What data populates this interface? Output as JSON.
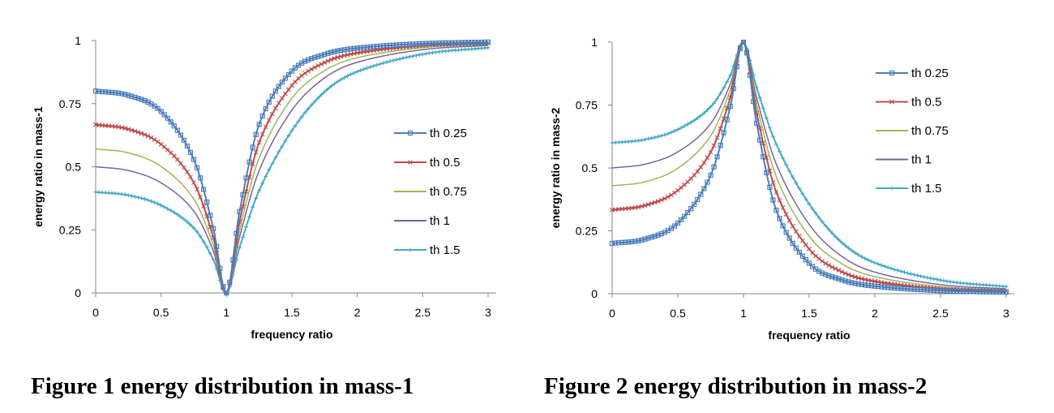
{
  "chart_data": [
    {
      "type": "line",
      "caption": "Figure 1 energy distribution in mass-1",
      "title": "",
      "xlabel": "frequency ratio",
      "ylabel": "energy ratio in mass-1",
      "xlim": [
        0,
        3
      ],
      "ylim": [
        0,
        1
      ],
      "xticks": [
        "0",
        "0.5",
        "1",
        "1.5",
        "2",
        "2.5",
        "3"
      ],
      "yticks": [
        "0",
        "0.25",
        "0.5",
        "0.75",
        "1"
      ],
      "grid": false,
      "legend_position": "right",
      "x": [
        0,
        0.25,
        0.5,
        0.75,
        0.9,
        1,
        1.1,
        1.25,
        1.5,
        1.75,
        2,
        2.5,
        3
      ],
      "series": [
        {
          "name": "th 0.25",
          "color": "#4a7ebb",
          "marker": "square",
          "values": [
            0.8,
            0.783,
            0.719,
            0.529,
            0.255,
            0,
            0.322,
            0.668,
            0.879,
            0.945,
            0.97,
            0.988,
            0.994
          ]
        },
        {
          "name": "th 0.5",
          "color": "#be4b48",
          "marker": "x",
          "values": [
            0.667,
            0.649,
            0.589,
            0.437,
            0.219,
            0,
            0.282,
            0.596,
            0.822,
            0.913,
            0.951,
            0.98,
            0.99
          ]
        },
        {
          "name": "th 0.75",
          "color": "#98b954",
          "marker": "none",
          "values": [
            0.571,
            0.555,
            0.501,
            0.372,
            0.189,
            0,
            0.248,
            0.535,
            0.771,
            0.881,
            0.932,
            0.972,
            0.986
          ]
        },
        {
          "name": "th 1",
          "color": "#7d60a0",
          "marker": "none",
          "values": [
            0.5,
            0.485,
            0.436,
            0.324,
            0.166,
            0,
            0.221,
            0.485,
            0.724,
            0.852,
            0.914,
            0.964,
            0.981
          ]
        },
        {
          "name": "th 1.5",
          "color": "#46aac5",
          "marker": "plus",
          "values": [
            0.4,
            0.387,
            0.347,
            0.257,
            0.132,
            0,
            0.18,
            0.406,
            0.643,
            0.797,
            0.877,
            0.946,
            0.972
          ]
        }
      ]
    },
    {
      "type": "line",
      "caption": "Figure 2 energy distribution in mass-2",
      "title": "",
      "xlabel": "frequency ratio",
      "ylabel": "energy ratio in mass-2",
      "xlim": [
        0,
        3
      ],
      "ylim": [
        0,
        1
      ],
      "xticks": [
        "0",
        "0.5",
        "1",
        "1.5",
        "2",
        "2.5",
        "3"
      ],
      "yticks": [
        "0",
        "0.25",
        "0.5",
        "0.75",
        "1"
      ],
      "grid": false,
      "legend_position": "top-right",
      "x": [
        0,
        0.25,
        0.5,
        0.75,
        0.9,
        1,
        1.1,
        1.25,
        1.5,
        1.75,
        2,
        2.5,
        3
      ],
      "series": [
        {
          "name": "th 0.25",
          "color": "#4a7ebb",
          "marker": "square",
          "values": [
            0.2,
            0.217,
            0.281,
            0.471,
            0.745,
            1,
            0.678,
            0.332,
            0.121,
            0.055,
            0.03,
            0.012,
            0.006
          ]
        },
        {
          "name": "th 0.5",
          "color": "#be4b48",
          "marker": "x",
          "values": [
            0.333,
            0.351,
            0.411,
            0.563,
            0.781,
            1,
            0.718,
            0.404,
            0.178,
            0.087,
            0.049,
            0.02,
            0.01
          ]
        },
        {
          "name": "th 0.75",
          "color": "#98b954",
          "marker": "none",
          "values": [
            0.429,
            0.445,
            0.499,
            0.628,
            0.811,
            1,
            0.752,
            0.465,
            0.229,
            0.119,
            0.068,
            0.028,
            0.014
          ]
        },
        {
          "name": "th 1",
          "color": "#7d60a0",
          "marker": "none",
          "values": [
            0.5,
            0.515,
            0.564,
            0.676,
            0.834,
            1,
            0.779,
            0.515,
            0.276,
            0.148,
            0.086,
            0.036,
            0.019
          ]
        },
        {
          "name": "th 1.5",
          "color": "#46aac5",
          "marker": "plus",
          "values": [
            0.6,
            0.613,
            0.653,
            0.743,
            0.868,
            1,
            0.82,
            0.594,
            0.357,
            0.203,
            0.123,
            0.054,
            0.028
          ]
        }
      ]
    }
  ]
}
